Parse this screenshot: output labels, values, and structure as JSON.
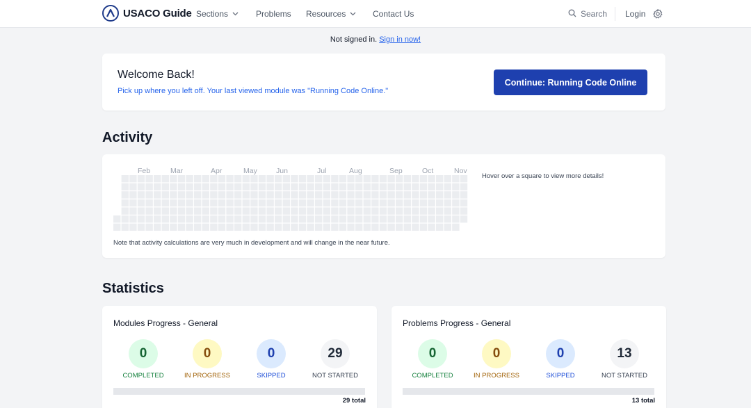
{
  "header": {
    "logo_text": "USACO Guide",
    "nav": [
      {
        "label": "Sections",
        "dropdown": true
      },
      {
        "label": "Problems",
        "dropdown": false
      },
      {
        "label": "Resources",
        "dropdown": true
      },
      {
        "label": "Contact Us",
        "dropdown": false
      }
    ],
    "search_label": "Search",
    "login_label": "Login"
  },
  "notice": {
    "text": "Not signed in.",
    "link": "Sign in now!"
  },
  "welcome": {
    "title": "Welcome Back!",
    "message": "Pick up where you left off. Your last viewed module was \"Running Code Online.\"",
    "button_label": "Continue: Running Code Online"
  },
  "activity": {
    "title": "Activity",
    "months": [
      "Feb",
      "Mar",
      "Apr",
      "May",
      "Jun",
      "Jul",
      "Aug",
      "Sep",
      "Oct",
      "Nov"
    ],
    "hover_hint": "Hover over a square to view more details!",
    "note": "Note that activity calculations are very much in development and will change in the near future."
  },
  "statistics": {
    "title": "Statistics",
    "cards": [
      {
        "title": "Modules Progress - General",
        "completed": "0",
        "in_progress": "0",
        "skipped": "0",
        "not_started": "29",
        "total": "29 total",
        "progress_fraction": 0
      },
      {
        "title": "Problems Progress - General",
        "completed": "0",
        "in_progress": "0",
        "skipped": "0",
        "not_started": "13",
        "total": "13 total",
        "progress_fraction": 0
      }
    ],
    "labels": {
      "completed": "COMPLETED",
      "in_progress": "IN PROGRESS",
      "skipped": "SKIPPED",
      "not_started": "NOT STARTED"
    }
  },
  "colors": {
    "primary_button": "#1e40af",
    "link": "#2563eb",
    "completed": "#dcfce7",
    "in_progress": "#fef9c3",
    "skipped": "#dbeafe",
    "not_started": "#f3f4f6",
    "heat_empty": "#ebedf0"
  },
  "icons": {
    "logo": "usaco-logo-icon",
    "search": "search-icon",
    "settings": "gear-icon",
    "dropdown": "chevron-down-icon"
  }
}
